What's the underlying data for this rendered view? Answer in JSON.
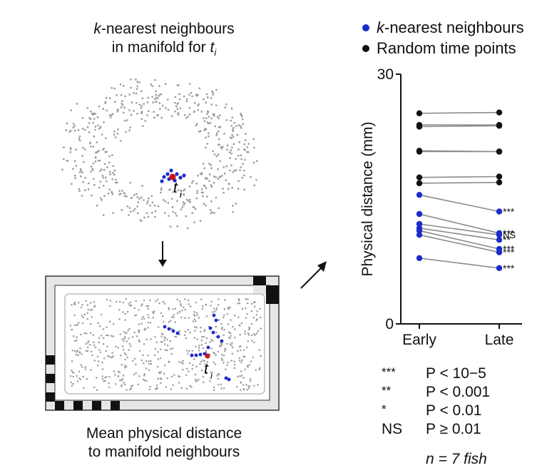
{
  "panels": {
    "manifold_title_em": "k",
    "manifold_title_rest": "-nearest neighbours",
    "manifold_subtitle": "in manifold for",
    "manifold_subtitle_var": "t",
    "manifold_subtitle_sub": "i",
    "point_label": "t",
    "point_label_sub": "i",
    "arena_caption_line1": "Mean physical distance",
    "arena_caption_line2": "to manifold neighbours"
  },
  "legend": [
    {
      "em": "k",
      "rest": "-nearest neighbours",
      "color": "#1a2ccc"
    },
    {
      "em": "",
      "rest": "Random time points",
      "color": "#111111"
    }
  ],
  "stats_legend": [
    {
      "symbol": "***",
      "expr": "P < 10−5"
    },
    {
      "symbol": "**",
      "expr": "P < 0.001"
    },
    {
      "symbol": "*",
      "expr": "P < 0.01"
    },
    {
      "symbol": "NS",
      "expr": "P ≥ 0.01"
    }
  ],
  "n_note": "n = 7 fish",
  "colors": {
    "knn": "#1a2ccc",
    "random": "#111111",
    "line": "#8c8c8c",
    "highlight": "#d0131b",
    "scatter": "#9a9a9a"
  },
  "chart_data": {
    "type": "scatter",
    "categories": [
      "Early",
      "Late"
    ],
    "ylabel": "Physical distance (mm)",
    "ylim": [
      0,
      30
    ],
    "yticks": [
      0,
      30
    ],
    "series": [
      {
        "name": "Random time points",
        "color": "#111111",
        "pairs": [
          [
            25.3,
            25.4
          ],
          [
            23.9,
            23.9
          ],
          [
            23.7,
            23.8
          ],
          [
            20.7,
            20.7
          ],
          [
            20.8,
            20.7
          ],
          [
            17.6,
            17.7
          ],
          [
            16.9,
            17.0
          ]
        ]
      },
      {
        "name": "k-nearest neighbours",
        "color": "#1a2ccc",
        "pairs": [
          [
            15.5,
            13.5
          ],
          [
            13.2,
            10.9
          ],
          [
            12.0,
            10.7
          ],
          [
            11.5,
            10.1
          ],
          [
            11.2,
            9.0
          ],
          [
            10.7,
            8.6
          ],
          [
            7.9,
            6.7
          ]
        ],
        "annotations": [
          "***",
          "***",
          "NS",
          "**",
          "***",
          "***",
          "***"
        ]
      }
    ]
  }
}
